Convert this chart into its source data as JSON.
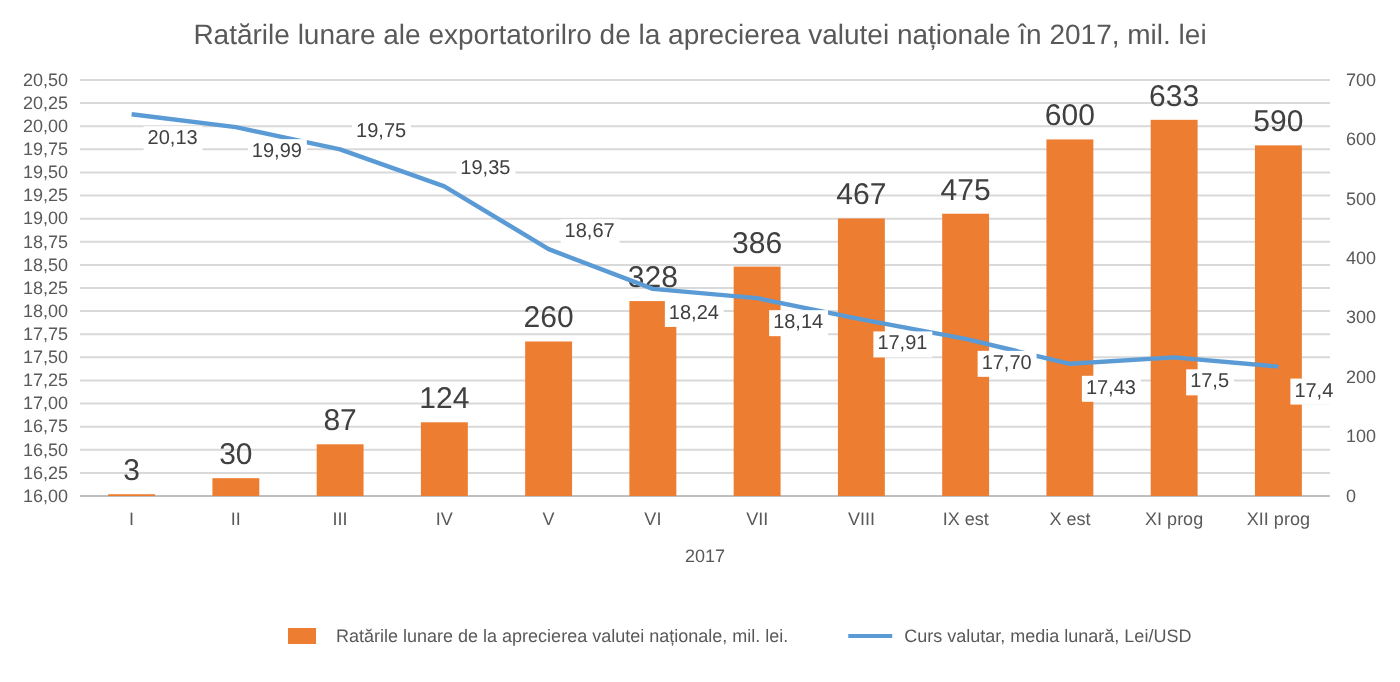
{
  "chart_data": {
    "type": "bar",
    "title": "Ratările lunare ale exportatorilro de la aprecierea valutei naționale în 2017, mil. lei",
    "xlabel": "2017",
    "categories": [
      "I",
      "II",
      "III",
      "IV",
      "V",
      "VI",
      "VII",
      "VIII",
      "IX est",
      "X est",
      "XI prog",
      "XII prog"
    ],
    "series": [
      {
        "name": "Ratările lunare de la aprecierea valutei naționale, mil. lei.",
        "axis": "y2",
        "color": "#ed7d31",
        "values": [
          3,
          30,
          87,
          124,
          260,
          328,
          386,
          467,
          475,
          600,
          633,
          590
        ],
        "value_labels": [
          "3",
          "30",
          "87",
          "124",
          "260",
          "328",
          "386",
          "467",
          "475",
          "600",
          "633",
          "590"
        ]
      },
      {
        "name": "Curs valutar, media lunară, Lei/USD",
        "type": "line",
        "axis": "y",
        "color": "#5b9bd5",
        "values": [
          20.13,
          19.99,
          19.75,
          19.35,
          18.67,
          18.24,
          18.14,
          17.91,
          17.7,
          17.43,
          17.5,
          17.4
        ],
        "value_labels": [
          "20,13",
          "19,99",
          "19,75",
          "19,35",
          "18,67",
          "18,24",
          "18,14",
          "17,91",
          "17,70",
          "17,43",
          "17,5",
          "17,4"
        ]
      }
    ],
    "ylim": [
      16,
      20.5
    ],
    "yticks": [
      {
        "value": 16,
        "label": "16,00"
      },
      {
        "value": 16.25,
        "label": "16,25"
      },
      {
        "value": 16.5,
        "label": "16,50"
      },
      {
        "value": 16.75,
        "label": "16,75"
      },
      {
        "value": 17,
        "label": "17,00"
      },
      {
        "value": 17.25,
        "label": "17,25"
      },
      {
        "value": 17.5,
        "label": "17,50"
      },
      {
        "value": 17.75,
        "label": "17,75"
      },
      {
        "value": 18,
        "label": "18,00"
      },
      {
        "value": 18.25,
        "label": "18,25"
      },
      {
        "value": 18.5,
        "label": "18,50"
      },
      {
        "value": 18.75,
        "label": "18,75"
      },
      {
        "value": 19,
        "label": "19,00"
      },
      {
        "value": 19.25,
        "label": "19,25"
      },
      {
        "value": 19.5,
        "label": "19,50"
      },
      {
        "value": 19.75,
        "label": "19,75"
      },
      {
        "value": 20,
        "label": "20,00"
      },
      {
        "value": 20.25,
        "label": "20,25"
      },
      {
        "value": 20.5,
        "label": "20,50"
      }
    ],
    "y2lim": [
      0,
      700
    ],
    "y2ticks": [
      0,
      100,
      200,
      300,
      400,
      500,
      600,
      700
    ],
    "grid": "y",
    "legend": "bottom",
    "marker": "none",
    "line_style": "solid"
  }
}
